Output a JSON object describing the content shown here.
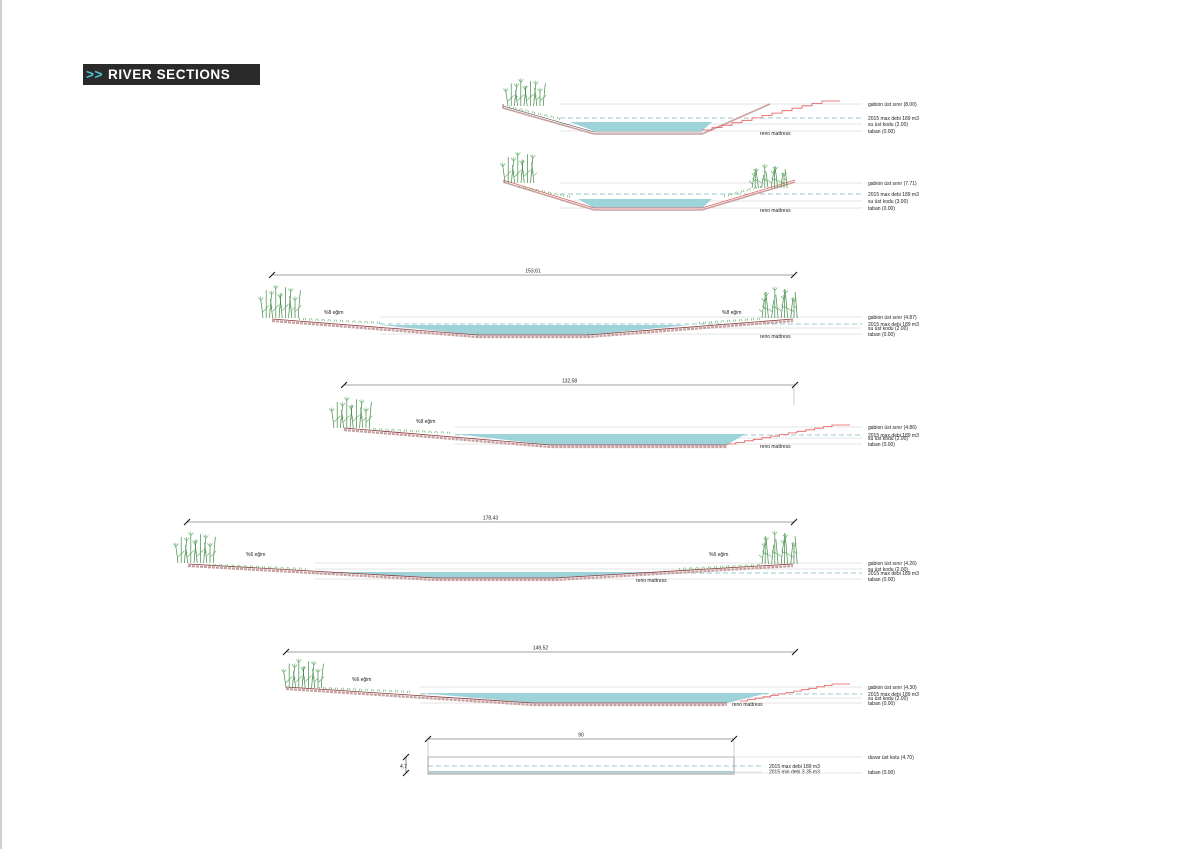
{
  "header": {
    "arrows": ">>",
    "title": "RIVER SECTIONS"
  },
  "colors": {
    "water": "#9fd3da",
    "dashed": "#7fb7c4",
    "red": "#e35a5a",
    "mattress": "#c9a0a0",
    "grass": "#5aa85e",
    "reed": "#3f8a47",
    "line": "#9a9a9a"
  },
  "sections": [
    {
      "id": "s1",
      "levels": [
        {
          "text": "gabion üst sınır (8.00)"
        },
        {
          "text": "2015 max debi 189 m3",
          "dashed": true
        },
        {
          "text": "su üst kodu (2.00)"
        },
        {
          "text": "taban (0.00)"
        }
      ],
      "mattress_label": "reno mattress"
    },
    {
      "id": "s2",
      "levels": [
        {
          "text": "gabion üst sınır (7.71)"
        },
        {
          "text": "2015 max debi 189 m3",
          "dashed": true
        },
        {
          "text": "su üst kodu (3.00)"
        },
        {
          "text": "taban (0.00)"
        }
      ],
      "mattress_label": "reno mattress"
    },
    {
      "id": "s3",
      "width": "153,61",
      "slope_left": "%8 eğim",
      "slope_right": "%8 eğim",
      "levels": [
        {
          "text": "gabion üst sınır (4.87)"
        },
        {
          "text": "2015 max debi 189 m3",
          "dashed": true
        },
        {
          "text": "su üst kodu (2.00)"
        },
        {
          "text": "taban (0.00)"
        }
      ],
      "mattress_label": "reno mattress"
    },
    {
      "id": "s4",
      "width": "132,58",
      "slope_left": "%8 eğim",
      "levels": [
        {
          "text": "gabion üst sınır (4.86)"
        },
        {
          "text": "2015 max debi 189 m3",
          "dashed": true
        },
        {
          "text": "su üst kodu (2.00)"
        },
        {
          "text": "taban (0.00)"
        }
      ],
      "mattress_label": "reno mattress"
    },
    {
      "id": "s5",
      "width": "178,43",
      "slope_left": "%6 eğim",
      "slope_right": "%6 eğim",
      "levels": [
        {
          "text": "gabion üst sınır (4.26)"
        },
        {
          "text": "su üst kodu (2.00)"
        },
        {
          "text": "2015 max debi 189 m3",
          "dashed": true
        },
        {
          "text": "taban (0.00)"
        }
      ],
      "mattress_label": "reno mattress"
    },
    {
      "id": "s6",
      "width": "149,52",
      "slope_left": "%6 eğim",
      "levels": [
        {
          "text": "gabion üst sınır (4.30)"
        },
        {
          "text": "2015 max debi 189 m3",
          "dashed": true
        },
        {
          "text": "su üst kodu (2.00)"
        },
        {
          "text": "taban (0.00)"
        }
      ],
      "mattress_label": "reno mattress"
    },
    {
      "id": "s7",
      "width": "90",
      "height_dim": "4,7",
      "levels": [
        {
          "text": "duvar üst kotu (4.70)"
        },
        {
          "text": "2015 max debi 189 m3",
          "dashed": true
        },
        {
          "text": "2015 min debi 3.35 m3"
        },
        {
          "text": "taban (0.00)"
        }
      ]
    }
  ]
}
